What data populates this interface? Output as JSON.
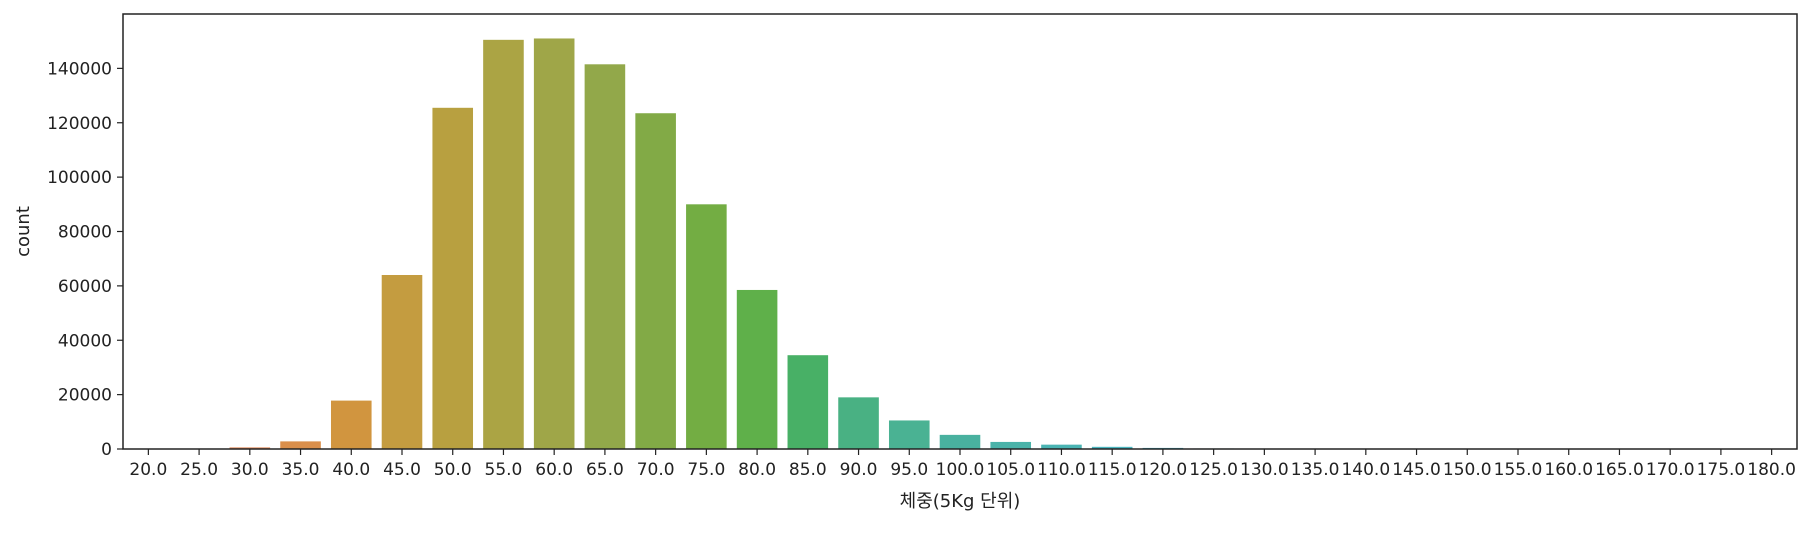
{
  "chart_data": {
    "type": "bar",
    "title": "",
    "xlabel": "체중(5Kg 단위)",
    "ylabel": "count",
    "ylim": [
      0,
      160000
    ],
    "yticks": [
      0,
      20000,
      40000,
      60000,
      80000,
      100000,
      120000,
      140000
    ],
    "ytick_labels": [
      "0",
      "20000",
      "40000",
      "60000",
      "80000",
      "100000",
      "120000",
      "140000"
    ],
    "categories": [
      "20.0",
      "25.0",
      "30.0",
      "35.0",
      "40.0",
      "45.0",
      "50.0",
      "55.0",
      "60.0",
      "65.0",
      "70.0",
      "75.0",
      "80.0",
      "85.0",
      "90.0",
      "95.0",
      "100.0",
      "105.0",
      "110.0",
      "115.0",
      "120.0",
      "125.0",
      "130.0",
      "135.0",
      "140.0",
      "145.0",
      "150.0",
      "155.0",
      "160.0",
      "165.0",
      "170.0",
      "175.0",
      "180.0"
    ],
    "values": [
      30,
      150,
      600,
      2800,
      17800,
      64000,
      125500,
      150500,
      151000,
      141500,
      123500,
      90000,
      58500,
      34500,
      19000,
      10500,
      5200,
      2600,
      1600,
      800,
      400,
      200,
      120,
      80,
      50,
      30,
      20,
      15,
      10,
      8,
      5,
      3,
      2
    ],
    "colors": [
      "#e8867b",
      "#e3887a",
      "#df8b5e",
      "#da8f4b",
      "#d1953f",
      "#c49c40",
      "#b8a040",
      "#aba444",
      "#9fa648",
      "#92a84a",
      "#82aa46",
      "#73ad43",
      "#5fb04a",
      "#48b066",
      "#49b183",
      "#4ab293",
      "#49b19f",
      "#4ab3a9",
      "#4ab4b3",
      "#4ab4bd",
      "#4bb3c8",
      "#4bb1d5",
      "#50ace2",
      "#66a7ee",
      "#7d9ff3",
      "#9799f5",
      "#aa92f4",
      "#bd8af2",
      "#cd82ee",
      "#d97be6",
      "#e479d8",
      "#ea7bc6",
      "#ee7fb3"
    ],
    "grid": false,
    "legend": "none"
  }
}
